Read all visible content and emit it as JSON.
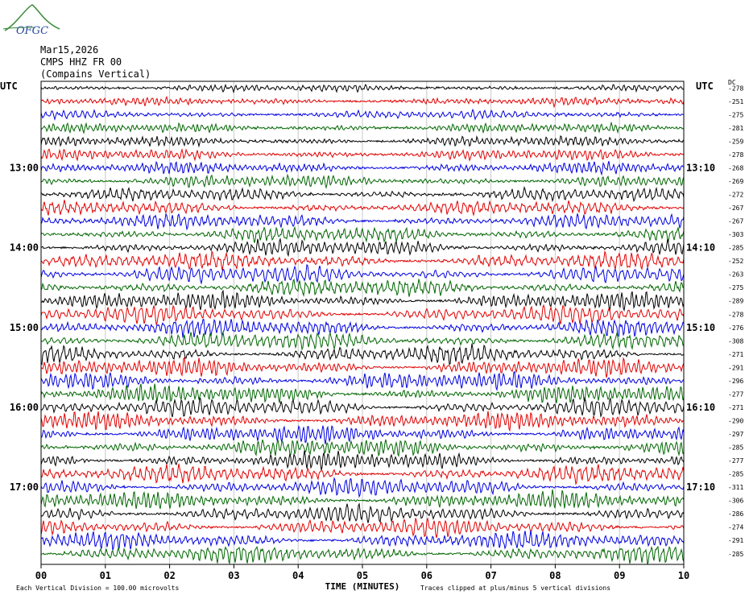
{
  "header": {
    "logo_text": "OFGC",
    "date": "Mar15,2026",
    "station": "CMPS HHZ FR 00",
    "location": "(Compains Vertical)"
  },
  "chart_data": {
    "type": "line",
    "title": "CMPS HHZ FR 00",
    "xlabel": "TIME (MINUTES)",
    "x_ticks": [
      "00",
      "01",
      "02",
      "03",
      "04",
      "05",
      "06",
      "07",
      "08",
      "09",
      "10"
    ],
    "xlim": [
      0,
      10
    ],
    "left_axis_label": "UTC",
    "right_axis_label": "UTC",
    "dc_label": "DC",
    "left_hour_labels": [
      {
        "label": "13:00",
        "trace": 6
      },
      {
        "label": "14:00",
        "trace": 12
      },
      {
        "label": "15:00",
        "trace": 18
      },
      {
        "label": "16:00",
        "trace": 24
      },
      {
        "label": "17:00",
        "trace": 30
      }
    ],
    "right_hour_labels": [
      {
        "label": "13:10",
        "trace": 6
      },
      {
        "label": "14:10",
        "trace": 12
      },
      {
        "label": "15:10",
        "trace": 18
      },
      {
        "label": "16:10",
        "trace": 24
      },
      {
        "label": "17:10",
        "trace": 30
      }
    ],
    "trace_colors": [
      "#000000",
      "#e00000",
      "#0000e0",
      "#006600"
    ],
    "trace_count": 36,
    "dc_offsets": [
      "-278",
      "-251",
      "-275",
      "-281",
      "-259",
      "-278",
      "-268",
      "-269",
      "-272",
      "-267",
      "-267",
      "-303",
      "-285",
      "-252",
      "-263",
      "-275",
      "-289",
      "-278",
      "-276",
      "-308",
      "-271",
      "-291",
      "-296",
      "-277",
      "-271",
      "-290",
      "-297",
      "-285",
      "-277",
      "-285",
      "-311",
      "-306",
      "-286",
      "-274",
      "-291",
      "-285"
    ],
    "grid": true,
    "clip_limit_divisions": 5
  },
  "footer": {
    "scale_note": "Each Vertical Division =  100.00 microvolts",
    "clip_note": "Traces clipped at plus/minus 5 vertical divisions"
  }
}
